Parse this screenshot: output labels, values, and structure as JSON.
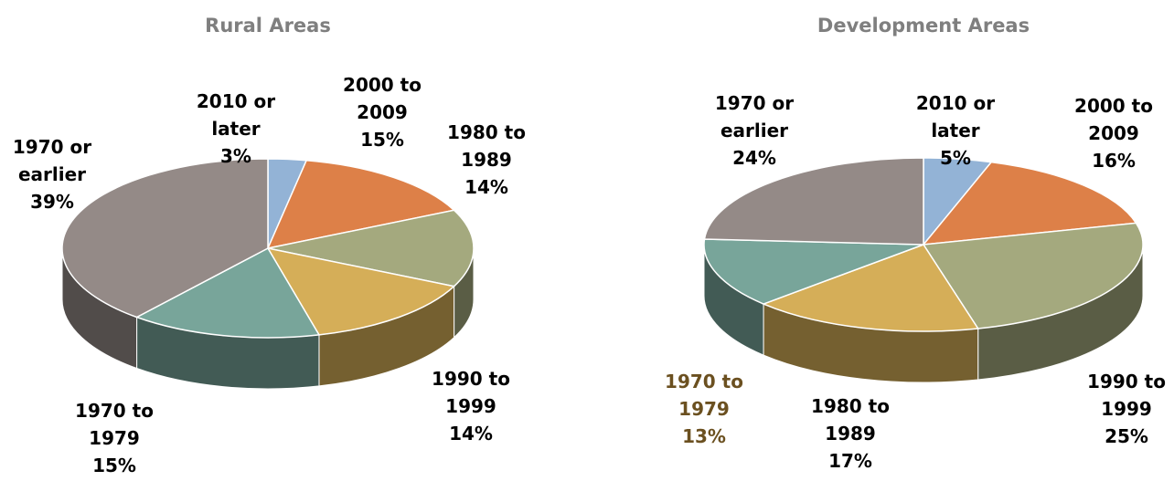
{
  "chart_data": [
    {
      "type": "pie",
      "title": "Rural Areas",
      "categories": [
        "2010 or later",
        "2000 to 2009",
        "1980 to 1989",
        "1990 to 1999",
        "1970 to 1979",
        "1970 or earlier"
      ],
      "values": [
        3,
        15,
        14,
        14,
        15,
        39
      ],
      "value_labels": [
        "3%",
        "15%",
        "14%",
        "14%",
        "15%",
        "39%"
      ],
      "colors": [
        "#93b3d6",
        "#dd8048",
        "#a4a97e",
        "#d5ae58",
        "#78a59a",
        "#948a87"
      ],
      "label_colors": [
        "#000000",
        "#000000",
        "#000000",
        "#000000",
        "#000000",
        "#000000"
      ]
    },
    {
      "type": "pie",
      "title": "Development Areas",
      "categories": [
        "2010 or later",
        "2000 to 2009",
        "1990 to 1999",
        "1980 to 1989",
        "1970 to 1979",
        "1970 or earlier"
      ],
      "values": [
        5,
        16,
        25,
        17,
        13,
        24
      ],
      "value_labels": [
        "5%",
        "16%",
        "25%",
        "17%",
        "13%",
        "24%"
      ],
      "colors": [
        "#93b3d6",
        "#dd8048",
        "#a4a97e",
        "#d5ae58",
        "#78a59a",
        "#948a87"
      ],
      "label_colors": [
        "#000000",
        "#000000",
        "#000000",
        "#000000",
        "#6b5020",
        "#000000"
      ]
    }
  ]
}
